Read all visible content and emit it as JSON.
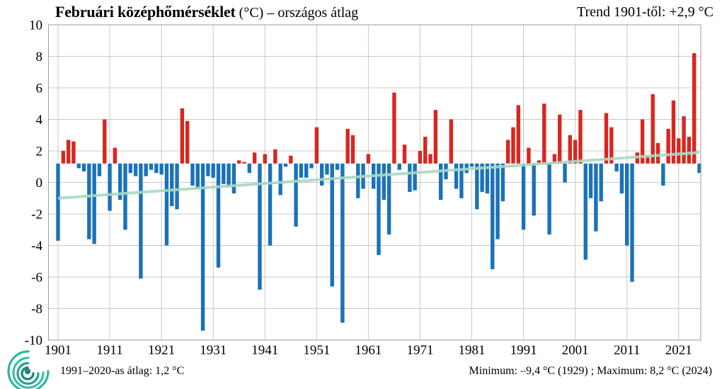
{
  "header": {
    "title_bold": "Februári középhőmérséklet",
    "title_rest": " (°C) – országos átlag",
    "trend_label": "Trend 1901-től: +2,9 °C"
  },
  "footer": {
    "avg_label": "1991–2020-as átlag:  1,2 °C",
    "minmax_label": "Minimum:  –9,4 °C (1929) ; Maximum:  8,2 °C (2024)",
    "logo_icon": "omsz-spiral-logo"
  },
  "chart_data": {
    "type": "bar",
    "title": "Februári középhőmérséklet (°C) – országos átlag",
    "xlabel": "",
    "ylabel": "°C",
    "ylim": [
      -10,
      10
    ],
    "ytick_step": 2,
    "grid": true,
    "legend_position": "none",
    "baseline": 1.2,
    "baseline_meaning": "1991–2020 átlag: 1,2 °C (red = above, blue = below)",
    "x_start": 1901,
    "x_end": 2025,
    "xticks": [
      1901,
      1911,
      1921,
      1931,
      1941,
      1951,
      1961,
      1971,
      1981,
      1991,
      2001,
      2011,
      2021
    ],
    "values": [
      -3.7,
      2.0,
      2.7,
      2.6,
      0.9,
      0.7,
      -3.6,
      -3.9,
      0.4,
      4.0,
      -1.8,
      2.2,
      -1.1,
      -3.0,
      0.6,
      0.4,
      -6.1,
      0.4,
      0.8,
      0.6,
      0.5,
      -4.0,
      -1.5,
      -1.7,
      4.7,
      3.9,
      -0.2,
      -0.4,
      -9.4,
      0.4,
      0.3,
      -5.4,
      -0.1,
      -0.3,
      -0.7,
      1.4,
      1.3,
      0.6,
      1.9,
      -6.8,
      1.8,
      -4.0,
      2.1,
      -0.8,
      1.0,
      1.7,
      -2.8,
      0.3,
      0.3,
      0.9,
      3.5,
      -0.2,
      0.5,
      -6.6,
      0.8,
      -8.9,
      3.4,
      3.0,
      -1.0,
      -0.4,
      1.8,
      -0.4,
      -4.6,
      -1.1,
      -3.3,
      5.7,
      0.8,
      2.4,
      -0.6,
      -0.5,
      2.0,
      2.9,
      1.8,
      4.6,
      -1.1,
      0.2,
      4.0,
      -0.4,
      -1.0,
      0.6,
      1.0,
      -1.7,
      -0.6,
      -0.7,
      -5.5,
      -3.6,
      -1.2,
      2.7,
      3.5,
      4.9,
      -3.0,
      2.2,
      -2.1,
      1.4,
      5.0,
      -3.3,
      1.8,
      4.3,
      0.0,
      3.0,
      2.7,
      4.6,
      -4.9,
      -1.0,
      -3.1,
      -1.2,
      4.4,
      3.5,
      0.7,
      -0.7,
      -4.0,
      -6.3,
      1.9,
      4.0,
      1.7,
      5.6,
      2.5,
      -0.2,
      3.4,
      5.2,
      2.8,
      4.2,
      2.9,
      8.2,
      0.6
    ],
    "trend": {
      "start_year": 1901,
      "start_value": -1.0,
      "end_year": 2025,
      "end_value": 1.9,
      "total_change": "+2,9 °C"
    },
    "colors": {
      "above": "#d9261f",
      "below": "#1a72b9",
      "trend": "#a9d9c2",
      "grid": "#c8c8c8",
      "frame": "#9e9e9e",
      "text": "#000000",
      "logo_teal": "#2eb6a3",
      "logo_green": "#2aa08c"
    }
  }
}
